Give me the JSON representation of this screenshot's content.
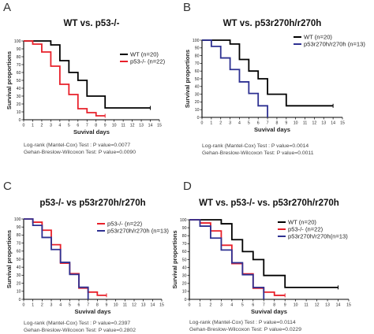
{
  "figure_labels": [
    "A",
    "B",
    "C",
    "D"
  ],
  "chart_data": [
    {
      "type": "line",
      "panel": "A",
      "title": "WT vs. p53-/-",
      "xlabel": "Suvival days",
      "ylabel": "Survival proportions",
      "xlim": [
        0,
        15
      ],
      "ylim": [
        0,
        100
      ],
      "x_ticks": [
        0,
        1,
        2,
        3,
        4,
        5,
        6,
        7,
        8,
        9,
        10,
        11,
        12,
        13,
        14,
        15
      ],
      "y_ticks": [
        0,
        10,
        20,
        30,
        40,
        50,
        60,
        70,
        80,
        90,
        100
      ],
      "legend_position": "top-right",
      "series": [
        {
          "name": "WT (n=20)",
          "color": "#000000",
          "x": [
            0,
            3,
            4,
            5,
            6,
            7,
            9,
            14
          ],
          "y": [
            100,
            95,
            75,
            60,
            50,
            30,
            15,
            15
          ],
          "end_x": 14
        },
        {
          "name": "p53-/- (n=22)",
          "color": "#e8202a",
          "x": [
            0,
            1,
            2,
            3,
            4,
            5,
            6,
            7,
            8
          ],
          "y": [
            100,
            96,
            86,
            68,
            45,
            32,
            14,
            9,
            5
          ],
          "end_x": 9
        }
      ],
      "stats": [
        "Log-rank (Mantel-Cox) Test : P value=0.0077",
        "Gehan-Breslow-Wilcoxon Test: P value=0.0090"
      ]
    },
    {
      "type": "line",
      "panel": "B",
      "title": "WT vs. p53r270h/r270h",
      "xlabel": "Suvival days",
      "ylabel": "Survival proportions",
      "xlim": [
        0,
        15
      ],
      "ylim": [
        0,
        100
      ],
      "x_ticks": [
        0,
        1,
        2,
        3,
        4,
        5,
        6,
        7,
        8,
        9,
        10,
        11,
        12,
        13,
        14,
        15
      ],
      "y_ticks": [
        0,
        10,
        20,
        30,
        40,
        50,
        60,
        70,
        80,
        90,
        100
      ],
      "legend_position": "top-right",
      "series": [
        {
          "name": "WT (n=20)",
          "color": "#000000",
          "x": [
            0,
            3,
            4,
            5,
            6,
            7,
            9,
            14
          ],
          "y": [
            100,
            95,
            75,
            60,
            50,
            30,
            15,
            15
          ],
          "end_x": 14
        },
        {
          "name": "p53r270h/r270h (n=13)",
          "color": "#2e3192",
          "x": [
            0,
            1,
            2,
            3,
            4,
            5,
            6,
            7
          ],
          "y": [
            100,
            92,
            77,
            62,
            46,
            31,
            15,
            0
          ],
          "end_x": 7
        }
      ],
      "stats": [
        "Log-rank (Mantel-Cox) Test : P value=0.0014",
        "Gehan-Breslow-Wilcoxon Test: P value=0.0011"
      ]
    },
    {
      "type": "line",
      "panel": "C",
      "title": "p53-/- vs p53r270h/r270h",
      "xlabel": "Suvival days",
      "ylabel": "Survival proportions",
      "xlim": [
        0,
        15
      ],
      "ylim": [
        0,
        100
      ],
      "x_ticks": [
        0,
        1,
        2,
        3,
        4,
        5,
        6,
        7,
        8,
        9,
        10,
        11,
        12,
        13,
        14,
        15
      ],
      "y_ticks": [
        0,
        10,
        20,
        30,
        40,
        50,
        60,
        70,
        80,
        90,
        100
      ],
      "legend_position": "top-right",
      "series": [
        {
          "name": "p53-/- (n=22)",
          "color": "#e8202a",
          "x": [
            0,
            1,
            2,
            3,
            4,
            5,
            6,
            7,
            8
          ],
          "y": [
            100,
            96,
            86,
            68,
            45,
            32,
            14,
            9,
            5
          ],
          "end_x": 9
        },
        {
          "name": "p53r270h/r270h (n=13)",
          "color": "#2e3192",
          "x": [
            0,
            1,
            2,
            3,
            4,
            5,
            6,
            7
          ],
          "y": [
            100,
            92,
            77,
            62,
            46,
            31,
            15,
            0
          ],
          "end_x": 7
        }
      ],
      "stats": [
        "Log-rank (Mantel-Cox) Test : P value=0.2397",
        "Gehan-Breslow-Wilcoxon Test: P value=0.2802"
      ]
    },
    {
      "type": "line",
      "panel": "D",
      "title": "WT vs. p53-/- vs. p53r270h/r270h",
      "xlabel": "Suvival days",
      "ylabel": "Survival proportions",
      "xlim": [
        0,
        15
      ],
      "ylim": [
        0,
        100
      ],
      "x_ticks": [
        0,
        1,
        2,
        3,
        4,
        5,
        6,
        7,
        8,
        9,
        10,
        11,
        12,
        13,
        14,
        15
      ],
      "y_ticks": [
        0,
        10,
        20,
        30,
        40,
        50,
        60,
        70,
        80,
        90,
        100
      ],
      "legend_position": "top-right",
      "series": [
        {
          "name": "WT (n=20)",
          "color": "#000000",
          "x": [
            0,
            3,
            4,
            5,
            6,
            7,
            9,
            14
          ],
          "y": [
            100,
            95,
            75,
            60,
            50,
            30,
            15,
            15
          ],
          "end_x": 14
        },
        {
          "name": "p53-/- (n=22)",
          "color": "#e8202a",
          "x": [
            0,
            1,
            2,
            3,
            4,
            5,
            6,
            7,
            8
          ],
          "y": [
            100,
            96,
            86,
            68,
            45,
            32,
            14,
            9,
            5
          ],
          "end_x": 9
        },
        {
          "name": "p53r270h/r270h(n=13)",
          "color": "#2e3192",
          "x": [
            0,
            1,
            2,
            3,
            4,
            5,
            6,
            7
          ],
          "y": [
            100,
            92,
            77,
            62,
            46,
            31,
            15,
            0
          ],
          "end_x": 7
        }
      ],
      "stats": [
        "Log-rank (Mantel-Cox) Test : P value=0.0114",
        "Gehan-Breslow-Wilcoxon Test: P value=0.0229"
      ]
    }
  ]
}
